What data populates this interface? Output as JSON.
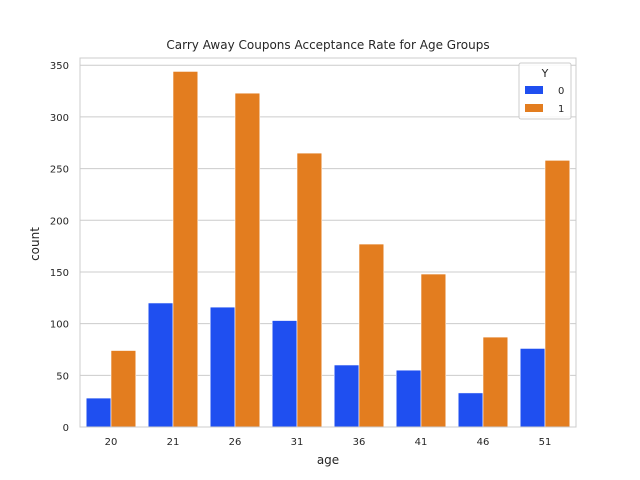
{
  "chart_data": {
    "type": "bar",
    "title": "Carry Away Coupons Acceptance Rate for Age Groups",
    "xlabel": "age",
    "ylabel": "count",
    "categories": [
      "20",
      "21",
      "26",
      "31",
      "36",
      "41",
      "46",
      "51"
    ],
    "series": [
      {
        "name": "0",
        "color": "#1f4ff0",
        "values": [
          28,
          120,
          116,
          103,
          60,
          55,
          33,
          76
        ]
      },
      {
        "name": "1",
        "color": "#e37d1f",
        "values": [
          74,
          344,
          323,
          265,
          177,
          148,
          87,
          258
        ]
      }
    ],
    "ylim": [
      0,
      350
    ],
    "yticks": [
      0,
      50,
      100,
      150,
      200,
      250,
      300,
      350
    ],
    "grid": "horizontal",
    "legend": {
      "title": "Y",
      "position": "top-right"
    }
  }
}
